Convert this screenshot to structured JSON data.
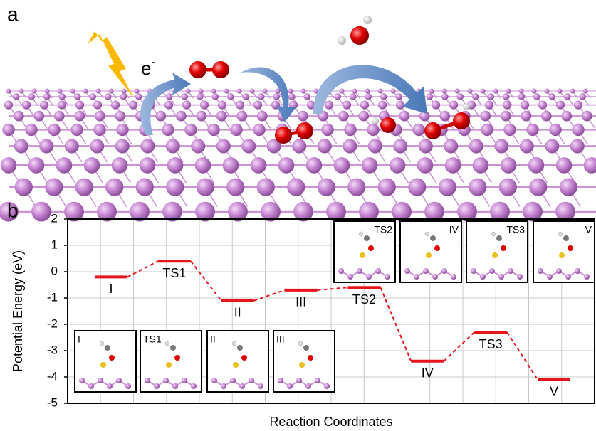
{
  "panel_labels": [
    "a",
    "b"
  ],
  "electron_label": {
    "base": "e",
    "sup": "-"
  },
  "insets": [
    {
      "label": "I"
    },
    {
      "label": "TS1"
    },
    {
      "label": "II"
    },
    {
      "label": "III"
    },
    {
      "label": "TS2"
    },
    {
      "label": "IV"
    },
    {
      "label": "TS3"
    },
    {
      "label": "V"
    }
  ],
  "chart_data": {
    "type": "energy",
    "y_label": "Potential Energy (eV)",
    "x_label": "Reaction Coordinates",
    "categories": [
      "I",
      "TS1",
      "II",
      "III",
      "TS2",
      "IV",
      "TS3",
      "V"
    ],
    "values": [
      -0.2,
      0.4,
      -1.1,
      -0.7,
      -0.6,
      -3.4,
      -2.3,
      -4.1
    ],
    "color": "#e8141c",
    "ylim": [
      -5,
      2
    ],
    "yticks": [
      -5,
      -4,
      -3,
      -2,
      -1,
      0,
      1,
      2
    ],
    "grid": true
  }
}
